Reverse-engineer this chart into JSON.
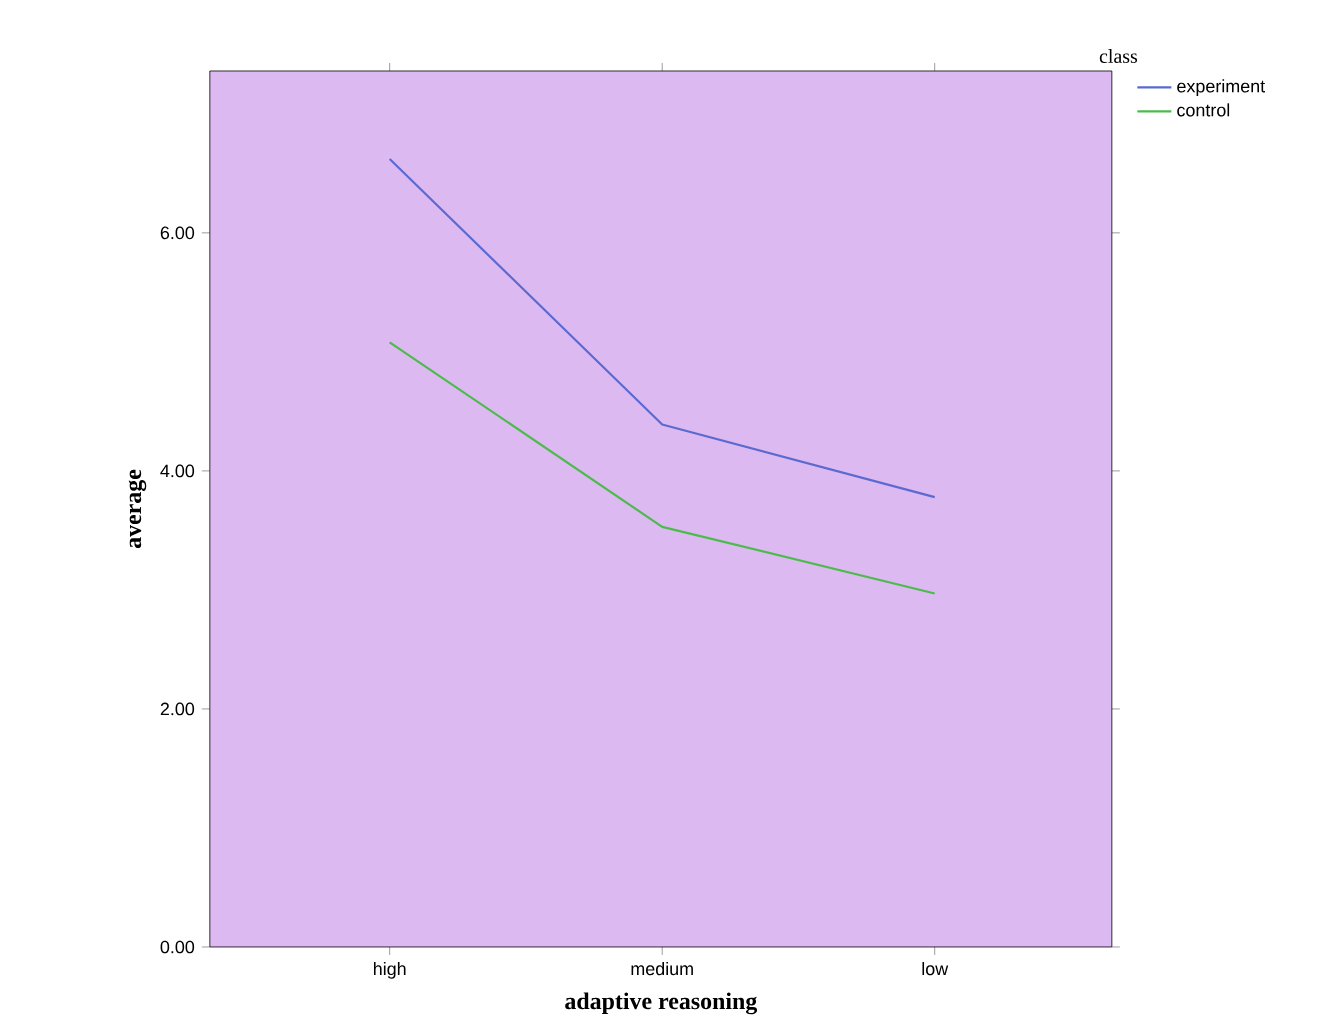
{
  "chart_data": {
    "type": "line",
    "xlabel": "adaptive reasoning",
    "ylabel": "average",
    "legend_title": "class",
    "categories": [
      "high",
      "medium",
      "low"
    ],
    "series": [
      {
        "name": "experiment",
        "color": "#5b6ad0",
        "values": [
          6.62,
          4.39,
          3.78
        ]
      },
      {
        "name": "control",
        "color": "#4cbb4c",
        "values": [
          5.08,
          3.53,
          2.97
        ]
      }
    ],
    "ylim": [
      0,
      7.36
    ],
    "yticks": [
      {
        "value": 0,
        "label": "0.00"
      },
      {
        "value": 2,
        "label": "2.00"
      },
      {
        "value": 4,
        "label": "4.00"
      },
      {
        "value": 6,
        "label": "6.00"
      }
    ],
    "grid": false,
    "legend": "top right",
    "marker": "none",
    "line_style": "solid"
  }
}
